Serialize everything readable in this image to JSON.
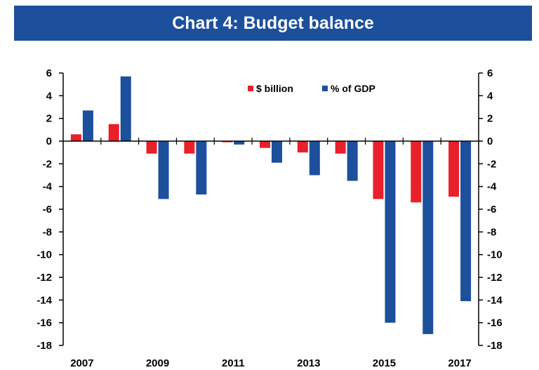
{
  "chart_data": {
    "type": "bar",
    "title": "Chart 4: Budget balance",
    "categories": [
      "2007",
      "2008",
      "2009",
      "2010",
      "2011",
      "2012",
      "2013",
      "2014",
      "2015",
      "2016",
      "2017"
    ],
    "x_tick_labels": [
      "2007",
      "2009",
      "2011",
      "2013",
      "2015",
      "2017"
    ],
    "series": [
      {
        "name": "$ billion",
        "color": "#e8202a",
        "values": [
          0.6,
          1.5,
          -1.1,
          -1.1,
          -0.1,
          -0.6,
          -1.0,
          -1.1,
          -5.1,
          -5.4,
          -4.9
        ]
      },
      {
        "name": "% of GDP",
        "color": "#1c4f9c",
        "values": [
          2.7,
          5.7,
          -5.1,
          -4.7,
          -0.3,
          -1.9,
          -3.0,
          -3.5,
          -16.0,
          -17.0,
          -14.1
        ]
      }
    ],
    "ylim": [
      -18,
      6
    ],
    "yticks": [
      6,
      4,
      2,
      0,
      -2,
      -4,
      -6,
      -8,
      -10,
      -12,
      -14,
      -16,
      -18
    ],
    "y_axis_both_sides": true,
    "grid": false,
    "legend_position": "top-right"
  }
}
